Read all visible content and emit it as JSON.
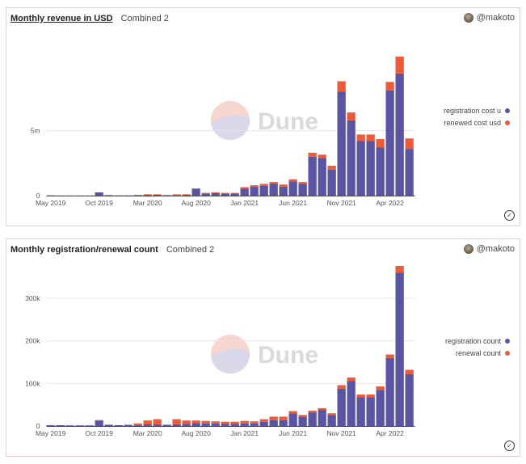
{
  "colors": {
    "registration": "#5a54a4",
    "renewal": "#ee5a36",
    "grid": "#e6e6e6"
  },
  "watermark": "Dune",
  "panels": [
    {
      "title": "Monthly revenue in USD",
      "subtitle": "Combined 2",
      "author": "@makoto",
      "legend": [
        "registration cost u",
        "renewed cost usd"
      ]
    },
    {
      "title": "Monthly registration/renewal count",
      "subtitle": "Combined 2",
      "author": "@makoto",
      "legend": [
        "registration count",
        "renewal count"
      ]
    }
  ],
  "chart_data": [
    {
      "type": "bar",
      "stacked": true,
      "title": "Monthly revenue in USD",
      "categories": [
        "2019-05",
        "2019-06",
        "2019-07",
        "2019-08",
        "2019-09",
        "2019-10",
        "2019-11",
        "2019-12",
        "2020-01",
        "2020-02",
        "2020-03",
        "2020-04",
        "2020-05",
        "2020-06",
        "2020-07",
        "2020-08",
        "2020-09",
        "2020-10",
        "2020-11",
        "2020-12",
        "2021-01",
        "2021-02",
        "2021-03",
        "2021-04",
        "2021-05",
        "2021-06",
        "2021-07",
        "2021-08",
        "2021-09",
        "2021-10",
        "2021-11",
        "2021-12",
        "2022-01",
        "2022-02",
        "2022-03",
        "2022-04",
        "2022-05",
        "2022-06"
      ],
      "x_tick_labels": [
        "May 2019",
        "Oct 2019",
        "Mar 2020",
        "Aug 2020",
        "Jan 2021",
        "Jun 2021",
        "Nov 2021",
        "Apr 2022"
      ],
      "y_tick_labels": [
        "0",
        "5m"
      ],
      "ylim": [
        0,
        13000000
      ],
      "grid": true,
      "legend_position": "right",
      "series": [
        {
          "name": "registration cost u",
          "values": [
            20000,
            10000,
            10000,
            10000,
            10000,
            250000,
            40000,
            20000,
            20000,
            20000,
            60000,
            60000,
            40000,
            40000,
            60000,
            500000,
            150000,
            200000,
            150000,
            150000,
            550000,
            700000,
            750000,
            900000,
            700000,
            1100000,
            900000,
            3000000,
            2900000,
            2000000,
            8000000,
            5800000,
            4200000,
            4200000,
            3700000,
            8100000,
            9400000,
            3600000
          ]
        },
        {
          "name": "renewed cost usd",
          "values": [
            0,
            0,
            0,
            0,
            0,
            0,
            0,
            0,
            0,
            40000,
            40000,
            40000,
            0,
            60000,
            40000,
            60000,
            60000,
            60000,
            60000,
            60000,
            100000,
            100000,
            150000,
            150000,
            150000,
            150000,
            150000,
            300000,
            250000,
            300000,
            800000,
            600000,
            500000,
            500000,
            650000,
            650000,
            1300000,
            800000
          ]
        }
      ]
    },
    {
      "type": "bar",
      "stacked": true,
      "title": "Monthly registration/renewal count",
      "categories": [
        "2019-05",
        "2019-06",
        "2019-07",
        "2019-08",
        "2019-09",
        "2019-10",
        "2019-11",
        "2019-12",
        "2020-01",
        "2020-02",
        "2020-03",
        "2020-04",
        "2020-05",
        "2020-06",
        "2020-07",
        "2020-08",
        "2020-09",
        "2020-10",
        "2020-11",
        "2020-12",
        "2021-01",
        "2021-02",
        "2021-03",
        "2021-04",
        "2021-05",
        "2021-06",
        "2021-07",
        "2021-08",
        "2021-09",
        "2021-10",
        "2021-11",
        "2021-12",
        "2022-01",
        "2022-02",
        "2022-03",
        "2022-04",
        "2022-05",
        "2022-06"
      ],
      "x_tick_labels": [
        "May 2019",
        "Oct 2019",
        "Mar 2020",
        "Aug 2020",
        "Jan 2021",
        "Jun 2021",
        "Nov 2021",
        "Apr 2022"
      ],
      "y_tick_labels": [
        "0",
        "100k",
        "200k",
        "300k"
      ],
      "ylim": [
        0,
        395000
      ],
      "grid": true,
      "legend_position": "right",
      "series": [
        {
          "name": "registration count",
          "values": [
            2000,
            2000,
            1500,
            1500,
            1500,
            13000,
            3000,
            2000,
            2000,
            2000,
            4000,
            4000,
            3000,
            4000,
            5000,
            7000,
            6000,
            6000,
            5000,
            5000,
            6000,
            6000,
            10000,
            14000,
            14000,
            30000,
            22000,
            32000,
            38000,
            26000,
            88000,
            106000,
            68000,
            68000,
            85000,
            160000,
            360000,
            122000
          ]
        },
        {
          "name": "renewal count",
          "values": [
            0,
            0,
            0,
            0,
            0,
            1000,
            0,
            0,
            1000,
            4000,
            9000,
            12000,
            0,
            12000,
            8000,
            6000,
            6000,
            5000,
            5000,
            5000,
            6000,
            5000,
            6000,
            8000,
            8000,
            5000,
            4000,
            4000,
            4000,
            4000,
            8000,
            8000,
            6000,
            6000,
            8000,
            8000,
            16000,
            10000
          ]
        }
      ]
    }
  ]
}
